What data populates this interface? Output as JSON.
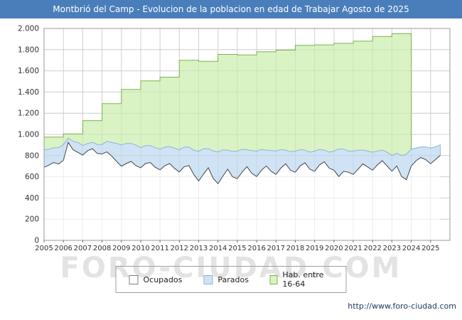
{
  "title": "Montbrió del Camp - Evolucion de la poblacion en edad de Trabajar Agosto de 2025",
  "watermark": "FORO-CIUDAD.COM",
  "footer_url": "http://www.foro-ciudad.com",
  "colors": {
    "titlebar": "#4a7ebb",
    "grid": "#dcdcdc",
    "grid_overlay": "#9a9a9a",
    "axis_border": "#999999",
    "tick_text": "#333333",
    "watermark": "#e3e3e3",
    "url_text": "#1f3864"
  },
  "legend": {
    "items": [
      {
        "label": "Ocupados",
        "fill": "#ffffff",
        "border": "#808080"
      },
      {
        "label": "Parados",
        "fill": "#cfe3f5",
        "border": "#8fb4d9"
      },
      {
        "label": "Hab. entre 16-64",
        "fill": "#d9f3c4",
        "border": "#7ab648"
      }
    ]
  },
  "chart_data": {
    "type": "area",
    "title": "Montbrió del Camp - Evolucion de la poblacion en edad de Trabajar Agosto de 2025",
    "xlabel": "",
    "ylabel": "",
    "xlim": [
      2005,
      2026
    ],
    "ylim": [
      0,
      2000
    ],
    "grid": true,
    "legend_position": "bottom",
    "yticks": [
      0,
      200,
      400,
      600,
      800,
      1000,
      1200,
      1400,
      1600,
      1800,
      2000
    ],
    "ytick_labels": [
      "0",
      "200",
      "400",
      "600",
      "800",
      "1.000",
      "1.200",
      "1.400",
      "1.600",
      "1.800",
      "2.000"
    ],
    "xticks": [
      2005,
      2006,
      2007,
      2008,
      2009,
      2010,
      2011,
      2012,
      2013,
      2014,
      2015,
      2016,
      2017,
      2018,
      2019,
      2020,
      2021,
      2022,
      2023,
      2024,
      2025
    ],
    "x_monthly_start": 2005.0,
    "x_step": 0.25,
    "series": [
      {
        "name": "Ocupados",
        "type": "area-line",
        "fill": "#ffffff",
        "line": "#4a4a4a",
        "values": [
          690,
          710,
          735,
          720,
          755,
          925,
          855,
          830,
          805,
          845,
          865,
          820,
          815,
          835,
          795,
          745,
          700,
          725,
          745,
          705,
          685,
          725,
          735,
          690,
          665,
          705,
          725,
          680,
          645,
          695,
          705,
          620,
          560,
          625,
          685,
          585,
          535,
          605,
          672,
          600,
          582,
          645,
          695,
          632,
          602,
          662,
          702,
          652,
          622,
          682,
          722,
          662,
          642,
          702,
          732,
          672,
          652,
          712,
          742,
          682,
          662,
          602,
          652,
          642,
          622,
          672,
          722,
          692,
          662,
          712,
          752,
          702,
          652,
          702,
          602,
          572,
          702,
          752,
          782,
          762,
          722,
          762,
          802
        ]
      },
      {
        "name": "Parados",
        "type": "area-stacked-on-ocupados",
        "fill": "#cfe3f5",
        "line": "#8fb4d9",
        "values": [
          165,
          150,
          140,
          155,
          150,
          40,
          80,
          95,
          90,
          70,
          60,
          85,
          90,
          100,
          130,
          170,
          200,
          190,
          170,
          195,
          190,
          170,
          160,
          185,
          195,
          175,
          160,
          190,
          210,
          185,
          175,
          230,
          280,
          240,
          180,
          260,
          300,
          250,
          180,
          240,
          260,
          215,
          160,
          215,
          240,
          195,
          150,
          195,
          220,
          175,
          130,
          175,
          200,
          155,
          120,
          160,
          190,
          145,
          110,
          150,
          180,
          260,
          210,
          200,
          220,
          180,
          130,
          150,
          170,
          130,
          100,
          130,
          150,
          120,
          200,
          240,
          160,
          120,
          100,
          120,
          150,
          120,
          100
        ]
      },
      {
        "name": "Hab. entre 16-64",
        "type": "step-yearly",
        "fill": "#d9f3c4",
        "line": "#7ab648",
        "x_start": 2005,
        "x_end": 2024,
        "values": [
          975,
          1005,
          1130,
          1290,
          1425,
          1505,
          1540,
          1700,
          1690,
          1755,
          1750,
          1780,
          1795,
          1840,
          1845,
          1860,
          1880,
          1925,
          1950
        ]
      }
    ]
  }
}
